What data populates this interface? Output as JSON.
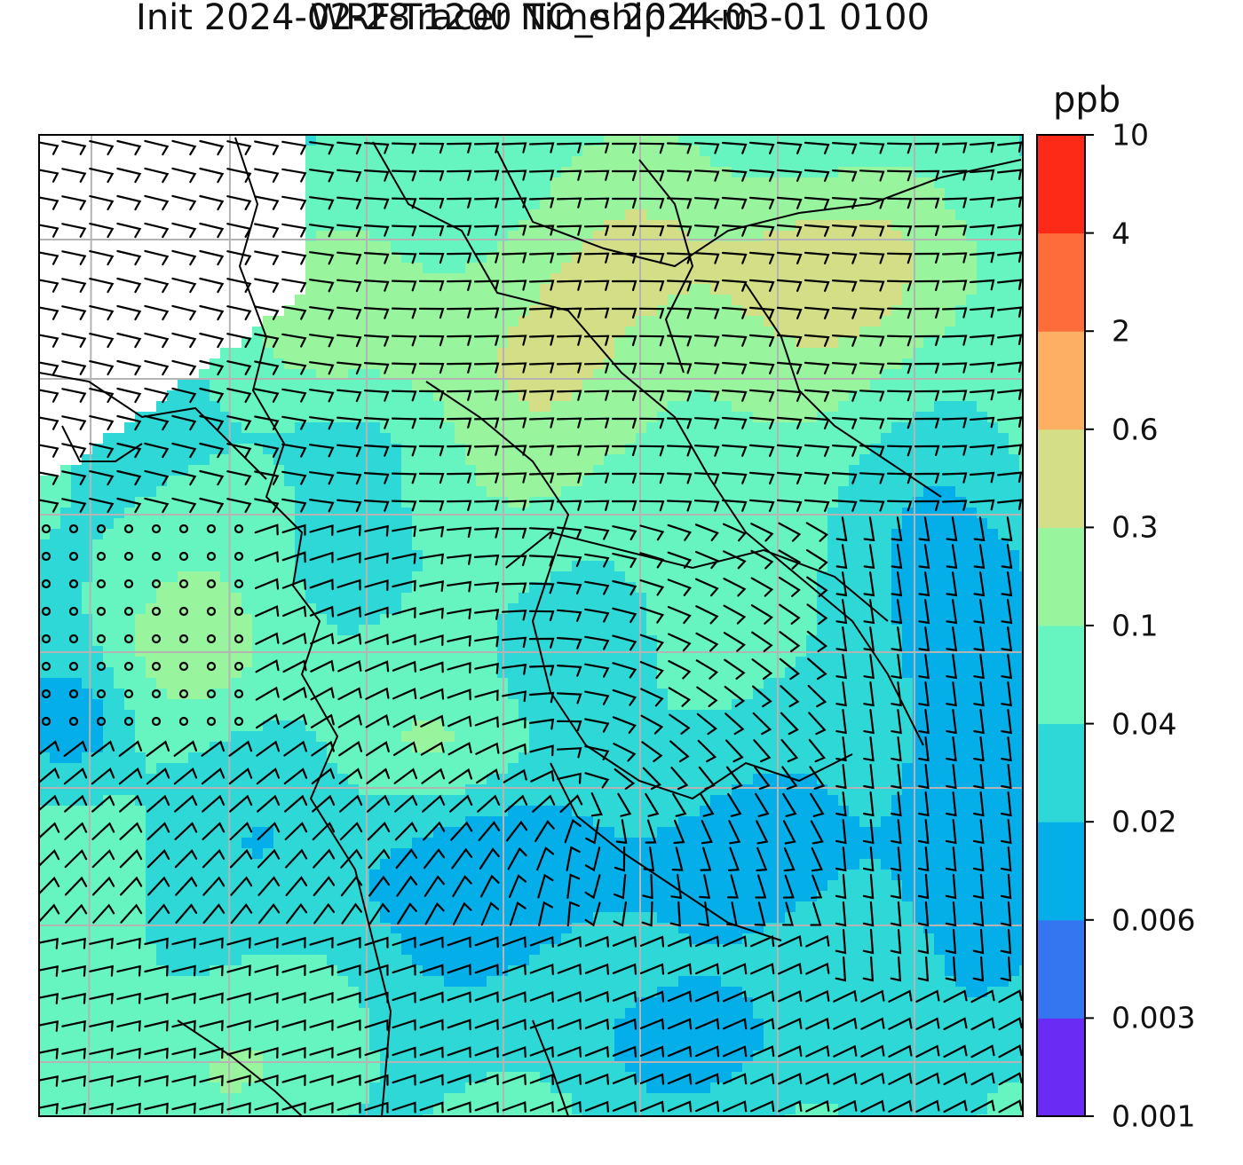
{
  "chart_data": {
    "type": "heatmap",
    "title": "WRF-Tracer NO_ship 4km",
    "subtitle": "Init 2024-02-28 1200 Time 2024-03-01 0100",
    "colorbar": {
      "unit": "ppb",
      "levels": [
        "0.001",
        "0.003",
        "0.006",
        "0.02",
        "0.04",
        "0.1",
        "0.3",
        "0.6",
        "2",
        "4",
        "10"
      ],
      "colors": [
        "#6a2bf5",
        "#3476f0",
        "#04aee8",
        "#2ed8d6",
        "#66f5c0",
        "#98f59e",
        "#d3de86",
        "#fdb063",
        "#fd6d3a",
        "#fd2a17"
      ]
    },
    "grid": true,
    "overlays": [
      "wind barbs",
      "country borders"
    ]
  }
}
